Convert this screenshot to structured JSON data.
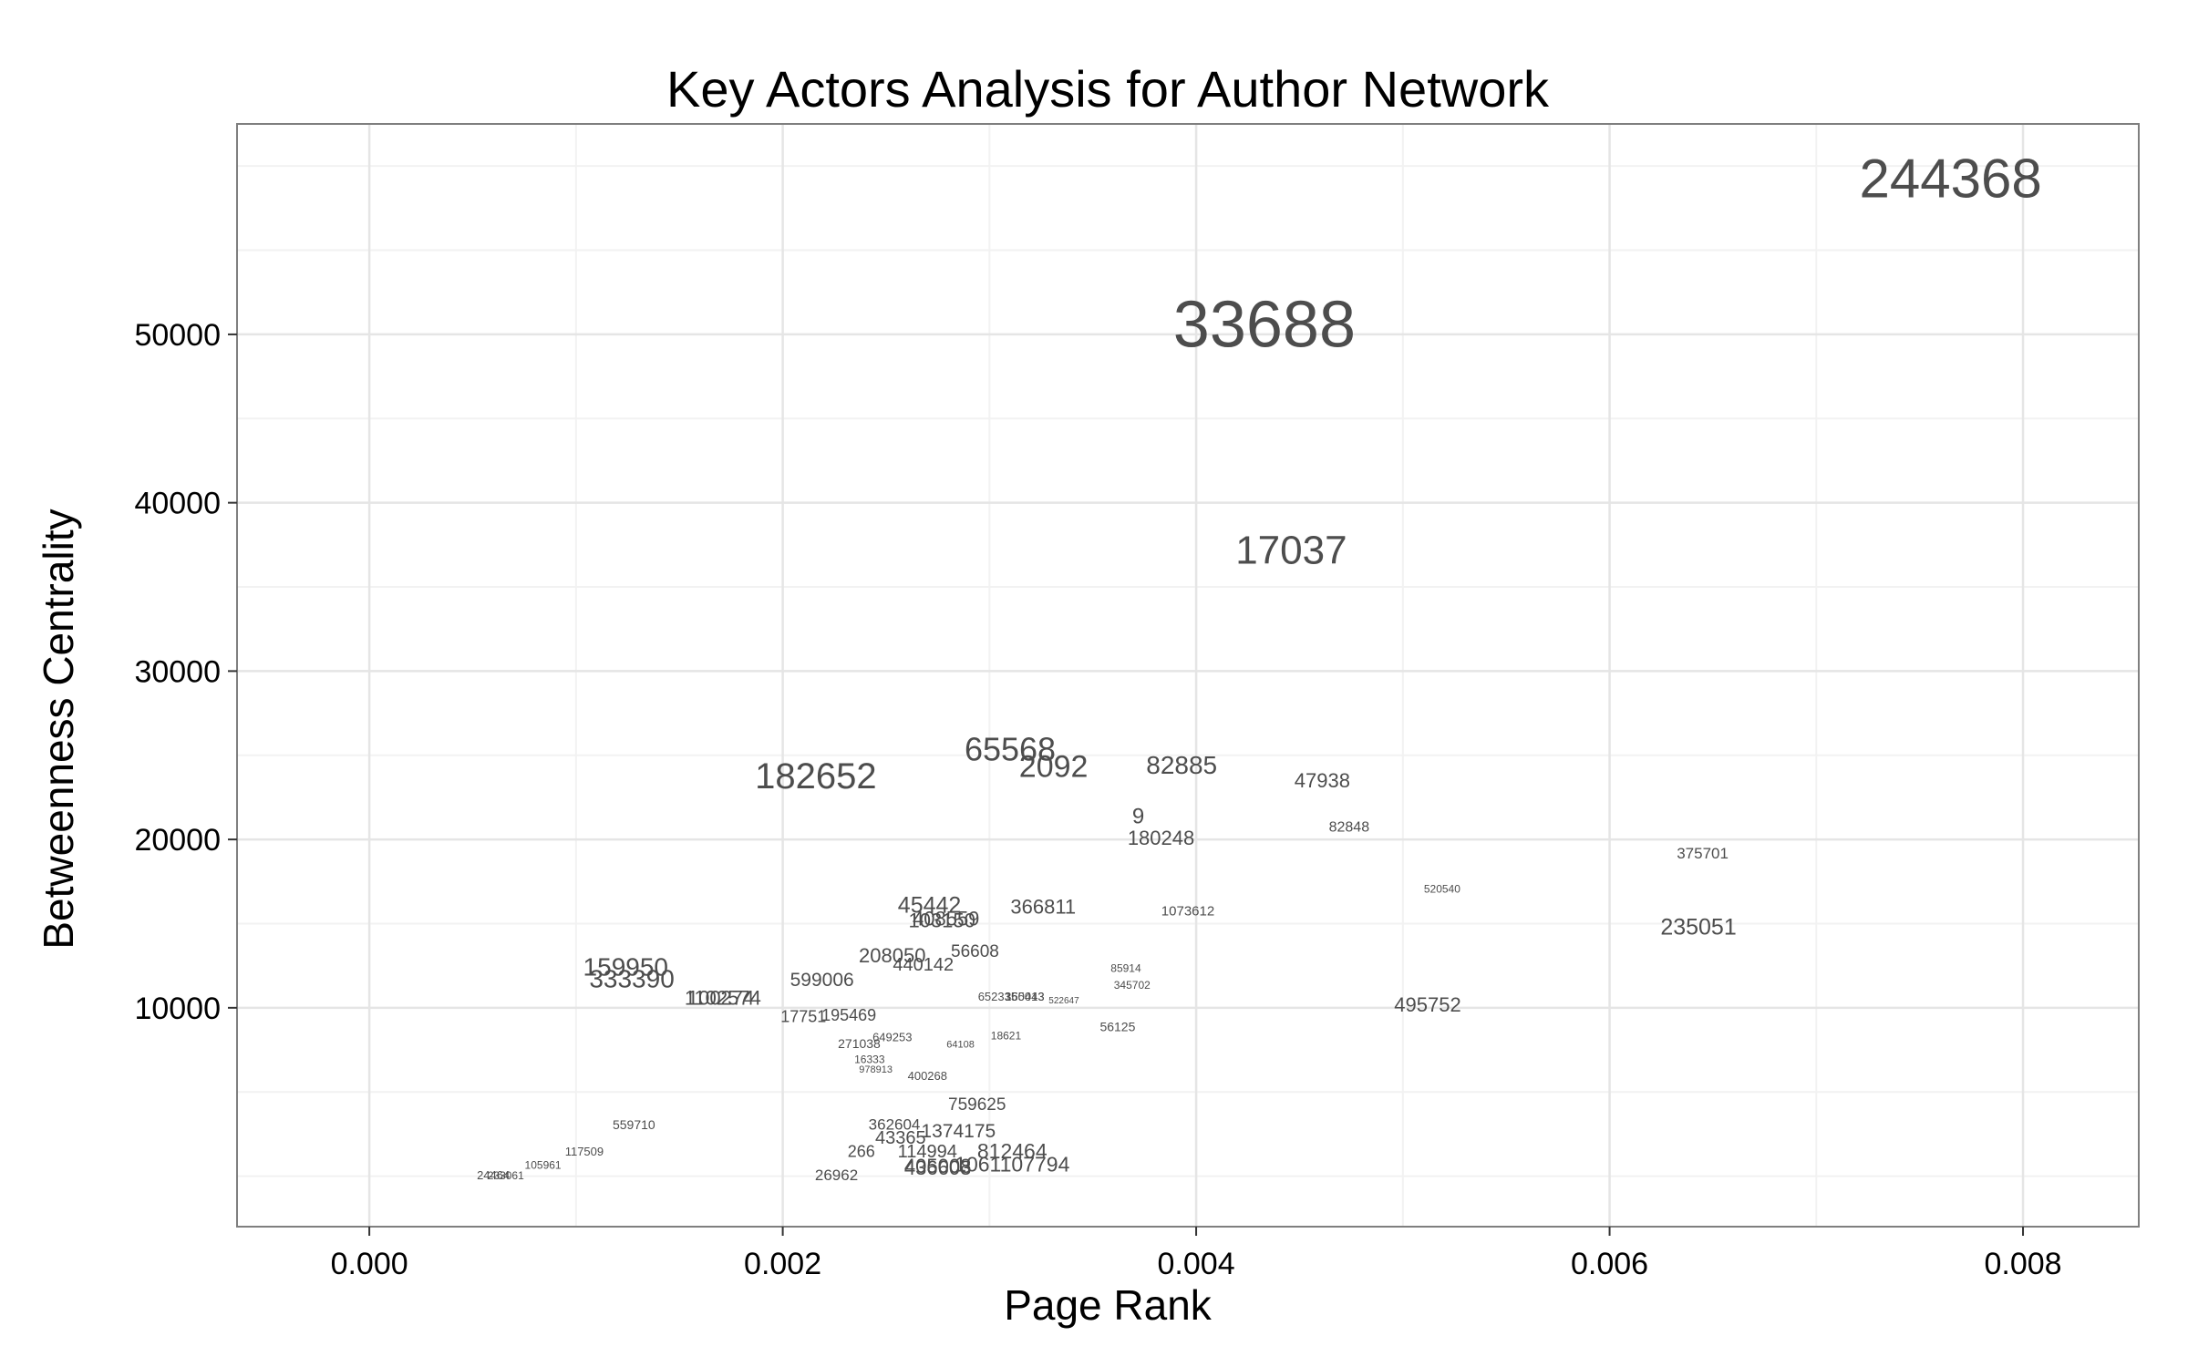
{
  "chart_data": {
    "type": "scatter",
    "title": "Key Actors Analysis for Author Network",
    "xlabel": "Page Rank",
    "ylabel": "Betweenness Centrality",
    "xlim": [
      -0.00064,
      0.00856
    ],
    "ylim": [
      -3000,
      62500
    ],
    "xticks": [
      0.0,
      0.002,
      0.004,
      0.006,
      0.008
    ],
    "xtick_labels": [
      "0.000",
      "0.002",
      "0.004",
      "0.006",
      "0.008"
    ],
    "yticks": [
      10000,
      20000,
      30000,
      40000,
      50000
    ],
    "ytick_labels": [
      "10000",
      "20000",
      "30000",
      "40000",
      "50000"
    ],
    "grid": true,
    "points": [
      {
        "label": "244368",
        "x": 0.00765,
        "y": 59000,
        "size": 60
      },
      {
        "label": "33688",
        "x": 0.00433,
        "y": 50300,
        "size": 72
      },
      {
        "label": "17037",
        "x": 0.00446,
        "y": 37000,
        "size": 44
      },
      {
        "label": "65568",
        "x": 0.0031,
        "y": 25200,
        "size": 36
      },
      {
        "label": "182652",
        "x": 0.00216,
        "y": 23600,
        "size": 40
      },
      {
        "label": "2092",
        "x": 0.00331,
        "y": 24200,
        "size": 34
      },
      {
        "label": "82885",
        "x": 0.00393,
        "y": 24300,
        "size": 28
      },
      {
        "label": "47938",
        "x": 0.00461,
        "y": 23400,
        "size": 22
      },
      {
        "label": "9",
        "x": 0.00372,
        "y": 21300,
        "size": 24
      },
      {
        "label": "180248",
        "x": 0.00383,
        "y": 20000,
        "size": 22
      },
      {
        "label": "82848",
        "x": 0.00474,
        "y": 20700,
        "size": 16
      },
      {
        "label": "375701",
        "x": 0.00645,
        "y": 19100,
        "size": 17
      },
      {
        "label": "520540",
        "x": 0.00519,
        "y": 17000,
        "size": 12
      },
      {
        "label": "235051",
        "x": 0.00643,
        "y": 14700,
        "size": 25
      },
      {
        "label": "1073612",
        "x": 0.00396,
        "y": 15700,
        "size": 15
      },
      {
        "label": "366811",
        "x": 0.00326,
        "y": 15900,
        "size": 22
      },
      {
        "label": "45442",
        "x": 0.00271,
        "y": 16000,
        "size": 25
      },
      {
        "label": "408559",
        "x": 0.00279,
        "y": 15200,
        "size": 22
      },
      {
        "label": "103150",
        "x": 0.00277,
        "y": 15100,
        "size": 22
      },
      {
        "label": "56608",
        "x": 0.00293,
        "y": 13300,
        "size": 19
      },
      {
        "label": "208050",
        "x": 0.00253,
        "y": 13000,
        "size": 22
      },
      {
        "label": "440142",
        "x": 0.00268,
        "y": 12500,
        "size": 20
      },
      {
        "label": "599006",
        "x": 0.00219,
        "y": 11600,
        "size": 21
      },
      {
        "label": "159950",
        "x": 0.00124,
        "y": 12300,
        "size": 28
      },
      {
        "label": "333390",
        "x": 0.00127,
        "y": 11600,
        "size": 28
      },
      {
        "label": "1102574",
        "x": 0.00171,
        "y": 10500,
        "size": 22
      },
      {
        "label": "100274",
        "x": 0.0017,
        "y": 10500,
        "size": 22
      },
      {
        "label": "85914",
        "x": 0.00366,
        "y": 12300,
        "size": 12
      },
      {
        "label": "345702",
        "x": 0.00369,
        "y": 11300,
        "size": 12
      },
      {
        "label": "495752",
        "x": 0.00512,
        "y": 10100,
        "size": 22
      },
      {
        "label": "652335",
        "x": 0.00304,
        "y": 10600,
        "size": 13
      },
      {
        "label": "350043",
        "x": 0.00317,
        "y": 10600,
        "size": 13
      },
      {
        "label": "165413",
        "x": 0.00317,
        "y": 10600,
        "size": 13
      },
      {
        "label": "522647",
        "x": 0.00336,
        "y": 10400,
        "size": 10
      },
      {
        "label": "17751",
        "x": 0.0021,
        "y": 9400,
        "size": 18
      },
      {
        "label": "195469",
        "x": 0.00232,
        "y": 9500,
        "size": 18
      },
      {
        "label": "56125",
        "x": 0.00362,
        "y": 8800,
        "size": 14
      },
      {
        "label": "18621",
        "x": 0.00308,
        "y": 8300,
        "size": 12
      },
      {
        "label": "649253",
        "x": 0.00253,
        "y": 8200,
        "size": 13
      },
      {
        "label": "271038",
        "x": 0.00237,
        "y": 7800,
        "size": 14
      },
      {
        "label": "64108",
        "x": 0.00286,
        "y": 7800,
        "size": 11
      },
      {
        "label": "16333",
        "x": 0.00242,
        "y": 6900,
        "size": 12
      },
      {
        "label": "978913",
        "x": 0.00245,
        "y": 6300,
        "size": 11
      },
      {
        "label": "400268",
        "x": 0.0027,
        "y": 5900,
        "size": 13
      },
      {
        "label": "759625",
        "x": 0.00294,
        "y": 4200,
        "size": 19
      },
      {
        "label": "362604",
        "x": 0.00254,
        "y": 3000,
        "size": 17
      },
      {
        "label": "1374175",
        "x": 0.00285,
        "y": 2600,
        "size": 21
      },
      {
        "label": "43365",
        "x": 0.00257,
        "y": 2200,
        "size": 20
      },
      {
        "label": "114994",
        "x": 0.0027,
        "y": 1400,
        "size": 20
      },
      {
        "label": "812464",
        "x": 0.00311,
        "y": 1400,
        "size": 23
      },
      {
        "label": "1061107794",
        "x": 0.00311,
        "y": 600,
        "size": 23
      },
      {
        "label": "405008",
        "x": 0.00275,
        "y": 500,
        "size": 22
      },
      {
        "label": "436603",
        "x": 0.00275,
        "y": 400,
        "size": 22
      },
      {
        "label": "266",
        "x": 0.00238,
        "y": 1400,
        "size": 18
      },
      {
        "label": "26962",
        "x": 0.00226,
        "y": 0,
        "size": 17
      },
      {
        "label": "559710",
        "x": 0.00128,
        "y": 3000,
        "size": 14
      },
      {
        "label": "117509",
        "x": 0.00104,
        "y": 1400,
        "size": 13
      },
      {
        "label": "24464",
        "x": 0.0006,
        "y": 0,
        "size": 13
      },
      {
        "label": "105961",
        "x": 0.00084,
        "y": 600,
        "size": 12
      },
      {
        "label": "233061",
        "x": 0.00066,
        "y": 0,
        "size": 12
      }
    ]
  }
}
